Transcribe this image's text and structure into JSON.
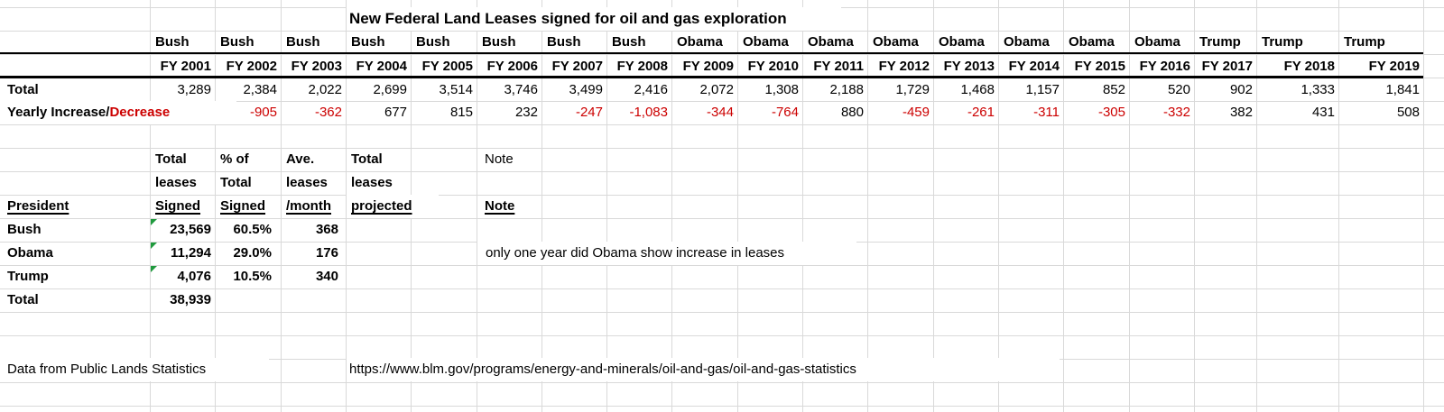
{
  "title": "New Federal Land Leases signed for oil and gas exploration",
  "colors": {
    "negative_text": "#cc0000",
    "positive_text": "#000000",
    "gridline": "#d9d9d9",
    "table_border": "#000000",
    "error_flag_green": "#1f9a3d"
  },
  "icons": {
    "error_flag_icon": "green-corner-triangle"
  },
  "lease_table": {
    "row_labels": {
      "total": "Total",
      "yearly_change_black": "Yearly Increase/",
      "yearly_change_red": "Decrease"
    },
    "years": [
      {
        "president": "Bush",
        "fiscal_year": "FY 2001",
        "total_leases": "3,289",
        "yearly_change": ""
      },
      {
        "president": "Bush",
        "fiscal_year": "FY 2002",
        "total_leases": "2,384",
        "yearly_change": "-905"
      },
      {
        "president": "Bush",
        "fiscal_year": "FY 2003",
        "total_leases": "2,022",
        "yearly_change": "-362"
      },
      {
        "president": "Bush",
        "fiscal_year": "FY 2004",
        "total_leases": "2,699",
        "yearly_change": "677"
      },
      {
        "president": "Bush",
        "fiscal_year": "FY 2005",
        "total_leases": "3,514",
        "yearly_change": "815"
      },
      {
        "president": "Bush",
        "fiscal_year": "FY 2006",
        "total_leases": "3,746",
        "yearly_change": "232"
      },
      {
        "president": "Bush",
        "fiscal_year": "FY 2007",
        "total_leases": "3,499",
        "yearly_change": "-247"
      },
      {
        "president": "Bush",
        "fiscal_year": "FY 2008",
        "total_leases": "2,416",
        "yearly_change": "-1,083"
      },
      {
        "president": "Obama",
        "fiscal_year": "FY 2009",
        "total_leases": "2,072",
        "yearly_change": "-344"
      },
      {
        "president": "Obama",
        "fiscal_year": "FY 2010",
        "total_leases": "1,308",
        "yearly_change": "-764"
      },
      {
        "president": "Obama",
        "fiscal_year": "FY 2011",
        "total_leases": "2,188",
        "yearly_change": "880"
      },
      {
        "president": "Obama",
        "fiscal_year": "FY 2012",
        "total_leases": "1,729",
        "yearly_change": "-459"
      },
      {
        "president": "Obama",
        "fiscal_year": "FY 2013",
        "total_leases": "1,468",
        "yearly_change": "-261"
      },
      {
        "president": "Obama",
        "fiscal_year": "FY 2014",
        "total_leases": "1,157",
        "yearly_change": "-311"
      },
      {
        "president": "Obama",
        "fiscal_year": "FY 2015",
        "total_leases": "852",
        "yearly_change": "-305"
      },
      {
        "president": "Obama",
        "fiscal_year": "FY 2016",
        "total_leases": "520",
        "yearly_change": "-332"
      },
      {
        "president": "Trump",
        "fiscal_year": "FY 2017",
        "total_leases": "902",
        "yearly_change": "382"
      },
      {
        "president": "Trump",
        "fiscal_year": "FY 2018",
        "total_leases": "1,333",
        "yearly_change": "431"
      },
      {
        "president": "Trump",
        "fiscal_year": "FY 2019",
        "total_leases": "1,841",
        "yearly_change": "508"
      }
    ]
  },
  "summary_table": {
    "header": {
      "president": "President",
      "col_total_signed": [
        "Total",
        "leases",
        "Signed"
      ],
      "col_pct_of_total": [
        "% of",
        "Total",
        "Signed"
      ],
      "col_avg_per_month": [
        "Ave.",
        "leases",
        "/month"
      ],
      "col_projected": [
        "Total",
        "leases",
        "projected"
      ],
      "col_note_top": "Note",
      "col_note": "Note"
    },
    "rows": [
      {
        "president": "Bush",
        "total_signed": "23,569",
        "pct_of_total": "60.5%",
        "avg_per_month": "368",
        "has_error_flag": true,
        "note": ""
      },
      {
        "president": "Obama",
        "total_signed": "11,294",
        "pct_of_total": "29.0%",
        "avg_per_month": "176",
        "has_error_flag": true,
        "note": "only one year did Obama show increase in leases"
      },
      {
        "president": "Trump",
        "total_signed": "4,076",
        "pct_of_total": "10.5%",
        "avg_per_month": "340",
        "has_error_flag": true,
        "note": ""
      }
    ],
    "total_row": {
      "label": "Total",
      "total_signed": "38,939"
    }
  },
  "footer": {
    "source_text": "Data from Public Lands Statistics",
    "source_url": "https://www.blm.gov/programs/energy-and-minerals/oil-and-gas/oil-and-gas-statistics"
  }
}
